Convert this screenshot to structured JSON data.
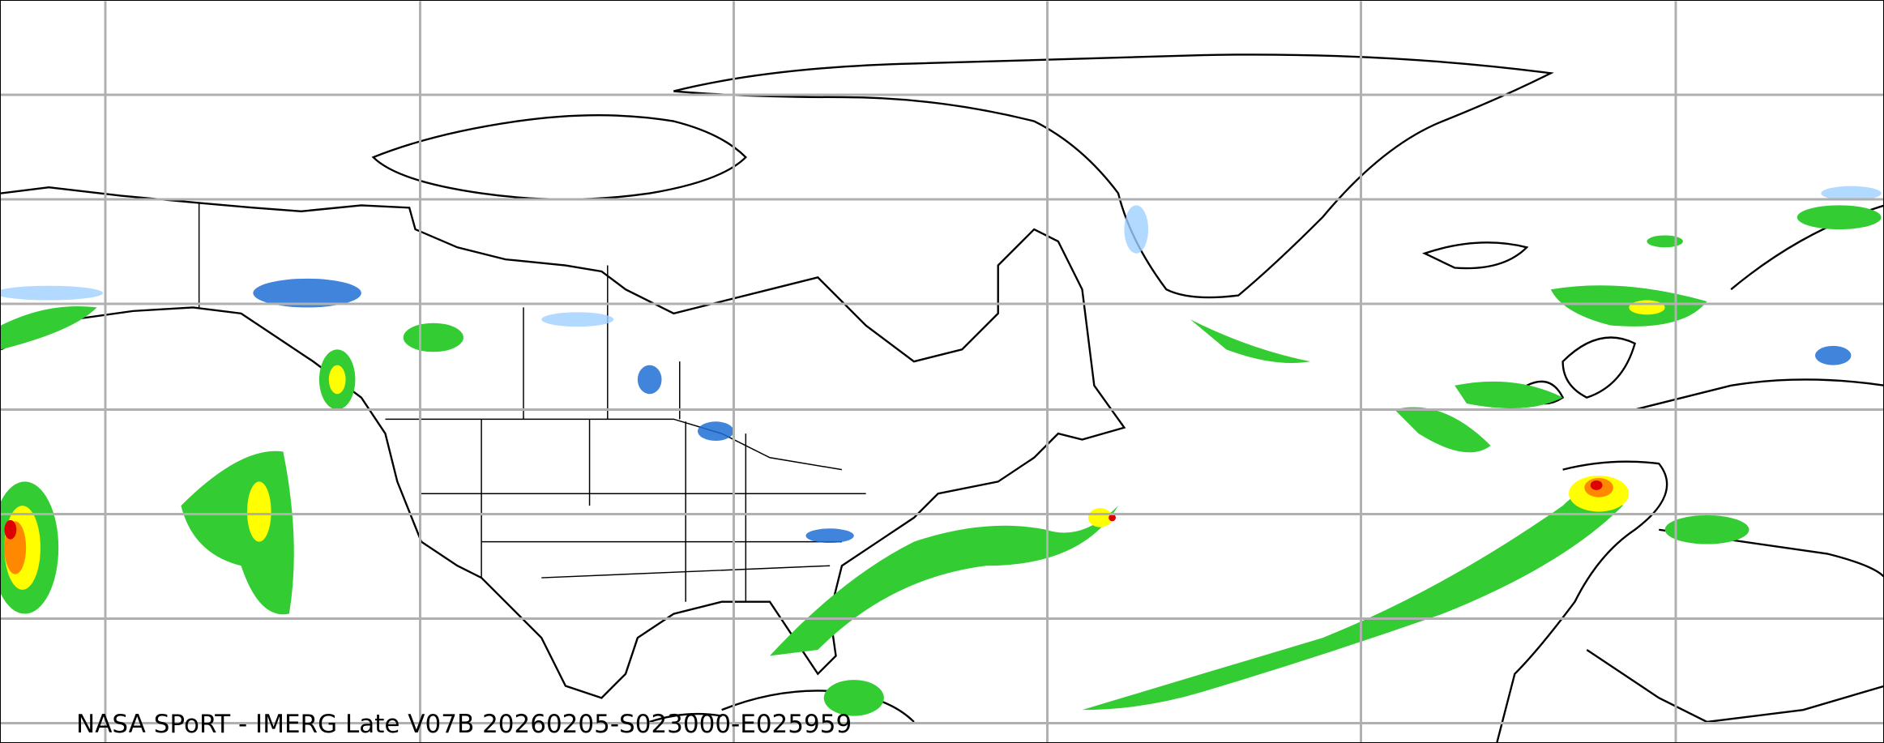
{
  "map": {
    "caption": "NASA SPoRT - IMERG Late V07B 20260205-S023000-E025959",
    "projection": "equirectangular",
    "region": "North America, North Atlantic, Europe",
    "gridlines": true,
    "colors": {
      "gridline": "#b0b0b0",
      "coastline": "#000000",
      "precip_light_snow": "#9fd0ff",
      "precip_snow": "#1f6fd6",
      "precip_light_rain": "#33cc33",
      "precip_rain": "#009900",
      "precip_moderate": "#ffff00",
      "precip_heavy": "#ff8800",
      "precip_extreme": "#dd0000"
    }
  }
}
